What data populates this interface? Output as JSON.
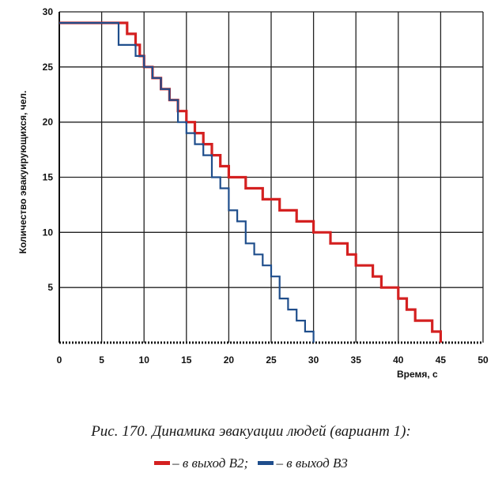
{
  "chart_data": {
    "type": "line",
    "step": true,
    "title": "",
    "xlabel": "Время, с",
    "ylabel": "Количество эвакуирующихся, чел.",
    "xlim": [
      0,
      50
    ],
    "ylim": [
      0,
      30
    ],
    "x_ticks": [
      0,
      5,
      10,
      15,
      20,
      25,
      30,
      35,
      40,
      45,
      50
    ],
    "y_ticks": [
      5,
      10,
      15,
      20,
      25,
      30
    ],
    "grid": true,
    "series": [
      {
        "name": "– в выход В2;",
        "color": "#d42020",
        "points": [
          [
            0,
            29
          ],
          [
            8,
            29
          ],
          [
            8,
            28
          ],
          [
            9,
            28
          ],
          [
            9,
            27
          ],
          [
            9.5,
            27
          ],
          [
            9.5,
            26
          ],
          [
            10,
            26
          ],
          [
            10,
            25
          ],
          [
            11,
            25
          ],
          [
            11,
            24
          ],
          [
            12,
            24
          ],
          [
            12,
            23
          ],
          [
            13,
            23
          ],
          [
            13,
            22
          ],
          [
            14,
            22
          ],
          [
            14,
            21
          ],
          [
            15,
            21
          ],
          [
            15,
            20
          ],
          [
            16,
            20
          ],
          [
            16,
            19
          ],
          [
            17,
            19
          ],
          [
            17,
            18
          ],
          [
            18,
            18
          ],
          [
            18,
            17
          ],
          [
            19,
            17
          ],
          [
            19,
            16
          ],
          [
            20,
            16
          ],
          [
            20,
            15
          ],
          [
            22,
            15
          ],
          [
            22,
            14
          ],
          [
            24,
            14
          ],
          [
            24,
            13
          ],
          [
            26,
            13
          ],
          [
            26,
            12
          ],
          [
            28,
            12
          ],
          [
            28,
            11
          ],
          [
            30,
            11
          ],
          [
            30,
            10
          ],
          [
            32,
            10
          ],
          [
            32,
            9
          ],
          [
            34,
            9
          ],
          [
            34,
            8
          ],
          [
            35,
            8
          ],
          [
            35,
            7
          ],
          [
            37,
            7
          ],
          [
            37,
            6
          ],
          [
            38,
            6
          ],
          [
            38,
            5
          ],
          [
            40,
            5
          ],
          [
            40,
            4
          ],
          [
            41,
            4
          ],
          [
            41,
            3
          ],
          [
            42,
            3
          ],
          [
            42,
            2
          ],
          [
            44,
            2
          ],
          [
            44,
            1
          ],
          [
            45,
            1
          ],
          [
            45,
            0
          ]
        ]
      },
      {
        "name": "– в выход В3",
        "color": "#1f4e8c",
        "points": [
          [
            0,
            29
          ],
          [
            7,
            29
          ],
          [
            7,
            27
          ],
          [
            9,
            27
          ],
          [
            9,
            26
          ],
          [
            10,
            26
          ],
          [
            10,
            25
          ],
          [
            11,
            25
          ],
          [
            11,
            24
          ],
          [
            12,
            24
          ],
          [
            12,
            23
          ],
          [
            13,
            23
          ],
          [
            13,
            22
          ],
          [
            14,
            22
          ],
          [
            14,
            20
          ],
          [
            15,
            20
          ],
          [
            15,
            19
          ],
          [
            16,
            19
          ],
          [
            16,
            18
          ],
          [
            17,
            18
          ],
          [
            17,
            17
          ],
          [
            18,
            17
          ],
          [
            18,
            15
          ],
          [
            19,
            15
          ],
          [
            19,
            14
          ],
          [
            20,
            14
          ],
          [
            20,
            12
          ],
          [
            21,
            12
          ],
          [
            21,
            11
          ],
          [
            22,
            11
          ],
          [
            22,
            9
          ],
          [
            23,
            9
          ],
          [
            23,
            8
          ],
          [
            24,
            8
          ],
          [
            24,
            7
          ],
          [
            25,
            7
          ],
          [
            25,
            6
          ],
          [
            26,
            6
          ],
          [
            26,
            4
          ],
          [
            27,
            4
          ],
          [
            27,
            3
          ],
          [
            28,
            3
          ],
          [
            28,
            2
          ],
          [
            29,
            2
          ],
          [
            29,
            1
          ],
          [
            30,
            1
          ],
          [
            30,
            0
          ]
        ]
      }
    ]
  },
  "caption": {
    "title": "Рис. 170. Динамика эвакуации людей (вариант 1):",
    "legend_b2": "– в выход В2;",
    "legend_b3": "– в выход В3"
  }
}
